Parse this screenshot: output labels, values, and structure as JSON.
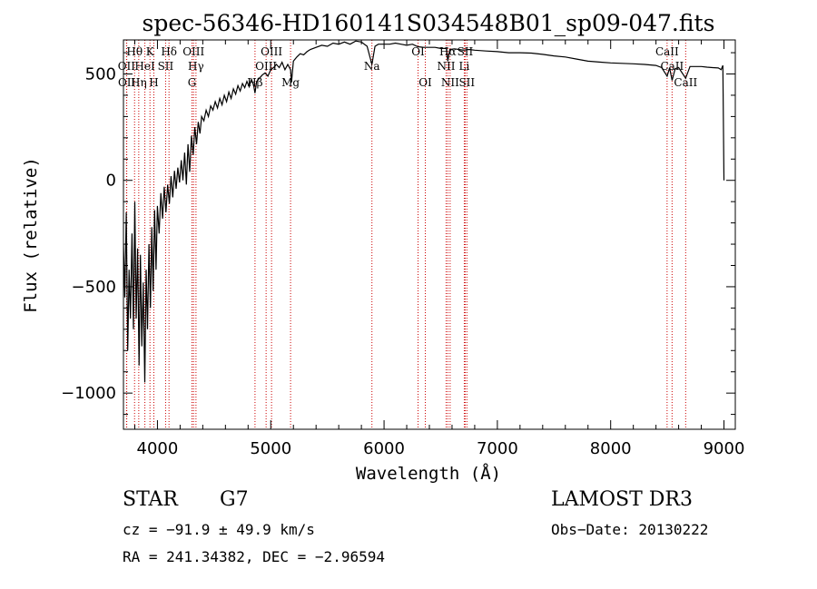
{
  "chart_data": {
    "type": "line",
    "title": "spec-56346-HD160141S034548B01_sp09-047.fits",
    "xlabel": "Wavelength (Å)",
    "ylabel": "Flux (relative)",
    "xlim": [
      3700,
      9100
    ],
    "ylim": [
      -1170,
      660
    ],
    "xticks": [
      4000,
      5000,
      6000,
      7000,
      8000,
      9000
    ],
    "xtick_labels": [
      "4000",
      "5000",
      "6000",
      "7000",
      "8000",
      "9000"
    ],
    "yticks": [
      -1000,
      -500,
      0,
      500
    ],
    "ytick_labels": [
      "−1000",
      "−500",
      "0",
      "500"
    ],
    "series": [
      {
        "name": "flux",
        "x": [
          3700,
          3712,
          3725,
          3738,
          3750,
          3762,
          3775,
          3788,
          3800,
          3812,
          3825,
          3838,
          3850,
          3862,
          3875,
          3888,
          3900,
          3912,
          3925,
          3938,
          3950,
          3962,
          3975,
          3988,
          4000,
          4015,
          4030,
          4045,
          4060,
          4075,
          4090,
          4105,
          4120,
          4135,
          4150,
          4165,
          4180,
          4195,
          4210,
          4225,
          4240,
          4255,
          4270,
          4285,
          4300,
          4315,
          4330,
          4345,
          4360,
          4375,
          4390,
          4410,
          4430,
          4450,
          4470,
          4490,
          4510,
          4530,
          4550,
          4570,
          4590,
          4610,
          4630,
          4650,
          4670,
          4690,
          4710,
          4730,
          4750,
          4770,
          4790,
          4810,
          4830,
          4850,
          4861,
          4875,
          4900,
          4925,
          4950,
          4975,
          5000,
          5025,
          5050,
          5075,
          5100,
          5125,
          5150,
          5175,
          5183,
          5200,
          5230,
          5260,
          5290,
          5320,
          5350,
          5400,
          5450,
          5500,
          5550,
          5600,
          5650,
          5700,
          5750,
          5800,
          5850,
          5893,
          5920,
          5950,
          6000,
          6050,
          6100,
          6150,
          6200,
          6250,
          6300,
          6350,
          6400,
          6450,
          6500,
          6550,
          6563,
          6580,
          6620,
          6660,
          6700,
          6750,
          6800,
          6900,
          7000,
          7100,
          7200,
          7300,
          7400,
          7500,
          7600,
          7700,
          7800,
          7900,
          8000,
          8100,
          8200,
          8300,
          8400,
          8450,
          8498,
          8520,
          8542,
          8570,
          8600,
          8662,
          8700,
          8750,
          8800,
          8850,
          8900,
          8950,
          8975,
          8990,
          9000
        ],
        "y": [
          -300,
          -550,
          -150,
          -800,
          -420,
          -650,
          -250,
          -700,
          -100,
          -650,
          -320,
          -870,
          -350,
          -780,
          -480,
          -950,
          -420,
          -700,
          -300,
          -600,
          -220,
          -520,
          -140,
          -420,
          -120,
          -250,
          -60,
          -180,
          -30,
          -150,
          -20,
          -110,
          20,
          -80,
          45,
          -40,
          60,
          -10,
          95,
          0,
          130,
          -20,
          170,
          40,
          210,
          120,
          250,
          170,
          275,
          220,
          300,
          280,
          330,
          300,
          350,
          330,
          370,
          340,
          385,
          355,
          400,
          370,
          415,
          385,
          430,
          405,
          445,
          420,
          455,
          435,
          465,
          440,
          475,
          445,
          410,
          465,
          480,
          495,
          505,
          490,
          520,
          530,
          545,
          530,
          555,
          520,
          545,
          520,
          460,
          560,
          580,
          595,
          590,
          605,
          615,
          625,
          635,
          630,
          645,
          640,
          650,
          640,
          655,
          650,
          630,
          545,
          630,
          640,
          640,
          640,
          645,
          640,
          635,
          640,
          628,
          625,
          625,
          625,
          620,
          620,
          560,
          615,
          618,
          615,
          612,
          615,
          612,
          608,
          605,
          600,
          600,
          598,
          592,
          585,
          580,
          570,
          560,
          556,
          552,
          550,
          548,
          545,
          540,
          530,
          490,
          528,
          470,
          525,
          530,
          480,
          535,
          535,
          535,
          532,
          530,
          528,
          520,
          540,
          0
        ]
      }
    ],
    "spectral_lines": [
      {
        "label": "Hθ",
        "x": 3798,
        "row": 1
      },
      {
        "label": "OII",
        "x": 3727,
        "row": 2
      },
      {
        "label": "OII",
        "x": 3729,
        "row": 3
      },
      {
        "label": "Hη",
        "x": 3835,
        "row": 3
      },
      {
        "label": "HeI",
        "x": 3889,
        "row": 2
      },
      {
        "label": "K",
        "x": 3934,
        "row": 1
      },
      {
        "label": "H",
        "x": 3968,
        "row": 3
      },
      {
        "label": "SII",
        "x": 4072,
        "row": 2
      },
      {
        "label": "Hδ",
        "x": 4102,
        "row": 1
      },
      {
        "label": "OIII",
        "x": 4319,
        "row": 1
      },
      {
        "label": "Hγ",
        "x": 4340,
        "row": 2
      },
      {
        "label": "G",
        "x": 4305,
        "row": 3
      },
      {
        "label": "Hβ",
        "x": 4861,
        "row": 3
      },
      {
        "label": "OIII",
        "x": 4959,
        "row": 2
      },
      {
        "label": "OIII",
        "x": 5007,
        "row": 1
      },
      {
        "label": "Mg",
        "x": 5175,
        "row": 3
      },
      {
        "label": "Na",
        "x": 5893,
        "row": 2
      },
      {
        "label": "OI",
        "x": 6300,
        "row": 1
      },
      {
        "label": "OI",
        "x": 6364,
        "row": 3
      },
      {
        "label": "Hα",
        "x": 6563,
        "row": 1
      },
      {
        "label": "NII",
        "x": 6548,
        "row": 2
      },
      {
        "label": "NII",
        "x": 6583,
        "row": 3
      },
      {
        "label": "SII",
        "x": 6716,
        "row": 1
      },
      {
        "label": "Li",
        "x": 6708,
        "row": 2
      },
      {
        "label": "SII",
        "x": 6731,
        "row": 3
      },
      {
        "label": "CaII",
        "x": 8498,
        "row": 1
      },
      {
        "label": "CaII",
        "x": 8542,
        "row": 2
      },
      {
        "label": "CaII",
        "x": 8662,
        "row": 3
      }
    ],
    "line_color": "#000000",
    "marker_color": "#cc0000"
  },
  "info": {
    "class": "STAR",
    "subclass": "G7",
    "survey": "LAMOST DR3",
    "cz": "cz = −91.9 ± 49.9 km/s",
    "obs_date": "Obs−Date: 20130222",
    "coords": "RA = 241.34382, DEC =  −2.96594"
  }
}
